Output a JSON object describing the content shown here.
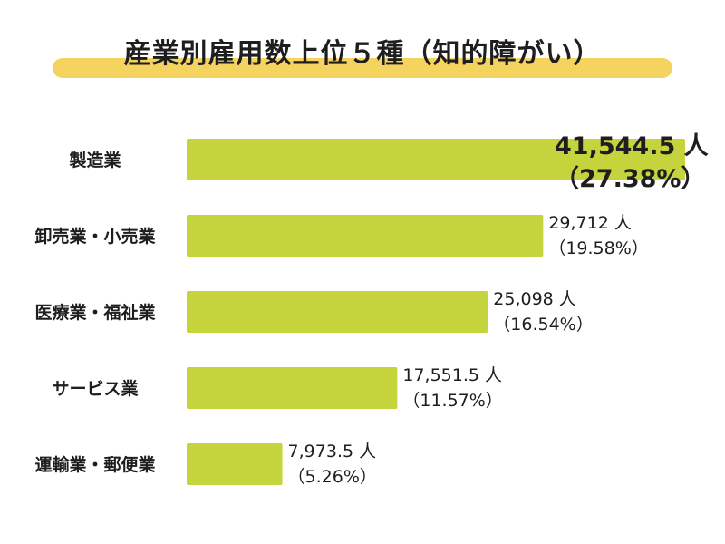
{
  "title": "産業別雇用数上位５種（知的障がい）",
  "colors": {
    "bar": "#c5d43c",
    "accent": "#f4d35e",
    "text": "#1e1e1e"
  },
  "chart_data": {
    "type": "bar",
    "orientation": "horizontal",
    "title": "産業別雇用数上位５種（知的障がい）",
    "categories": [
      "製造業",
      "卸売業・小売業",
      "医療業・福祉業",
      "サービス業",
      "運輸業・郵便業"
    ],
    "values": [
      41544.5,
      29712,
      25098,
      17551.5,
      7973.5
    ],
    "value_labels": [
      "41,544.5 人",
      "29,712 人",
      "25,098 人",
      "17,551.5 人",
      "7,973.5 人"
    ],
    "percent_labels": [
      "（27.38%）",
      "（19.58%）",
      "（16.54%）",
      "（11.57%）",
      "（5.26%）"
    ],
    "grid": false,
    "legend": "none"
  }
}
